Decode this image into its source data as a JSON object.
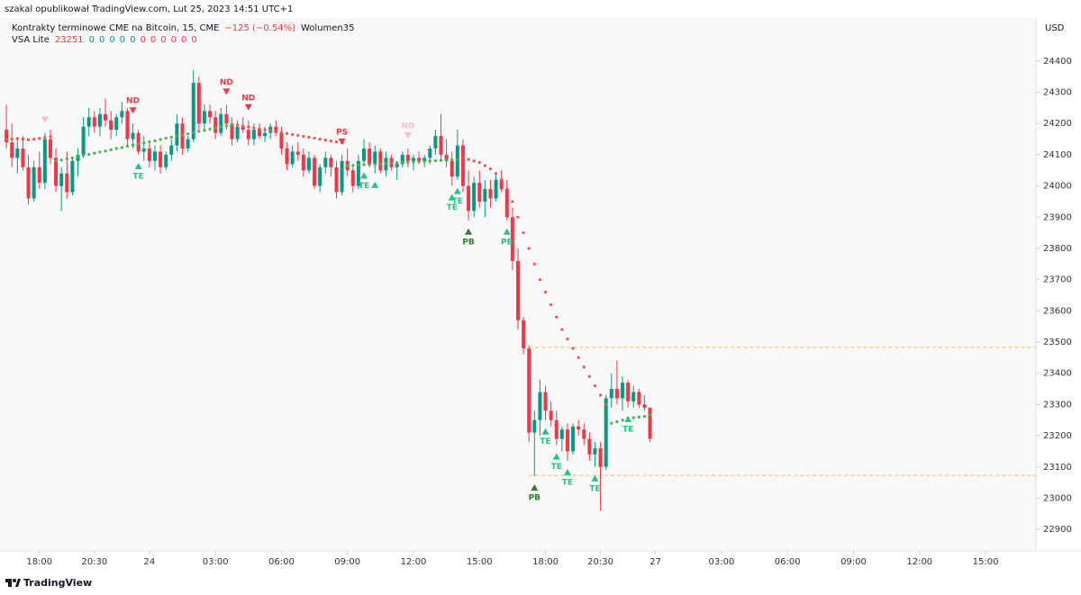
{
  "header": {
    "text": "szakal opublikował TradingView.com, Lut 25, 2023 14:51 UTC+1"
  },
  "legend": {
    "symbol": "Kontrakty terminowe CME na Bitcoin, 15, CME",
    "change": "−125 (−0.54%)",
    "volume_label": "Wolumen",
    "volume": 35,
    "indicator": "VSA Lite",
    "indicator_value": 23251,
    "indicator_values": [
      0,
      0,
      0,
      0,
      0,
      0,
      0,
      0,
      0,
      0,
      0
    ],
    "indicator_colors": [
      "#089981",
      "#089981",
      "#089981",
      "#089981",
      "#089981",
      "#f23645",
      "#f23645",
      "#f23645",
      "#f23645",
      "#f23645",
      "#f23645"
    ]
  },
  "footer": {
    "brand": "TradingView"
  },
  "chart_data": {
    "type": "candlestick",
    "currency": "USD",
    "up_color": "#089981",
    "down_color": "#f23645",
    "xlim": [
      -1,
      187
    ],
    "ylim": [
      22837,
      24538
    ],
    "yticks": [
      22900,
      23000,
      23100,
      23200,
      23300,
      23400,
      23500,
      23600,
      23700,
      23800,
      23900,
      24000,
      24100,
      24200,
      24300,
      24400
    ],
    "xticks": [
      {
        "value": 6,
        "label": "18:00"
      },
      {
        "value": 16,
        "label": "20:30"
      },
      {
        "value": 26,
        "label": "24"
      },
      {
        "value": 38,
        "label": "03:00"
      },
      {
        "value": 50,
        "label": "06:00"
      },
      {
        "value": 62,
        "label": "09:00"
      },
      {
        "value": 74,
        "label": "12:00"
      },
      {
        "value": 86,
        "label": "15:00"
      },
      {
        "value": 98,
        "label": "18:00"
      },
      {
        "value": 108,
        "label": "20:30"
      },
      {
        "value": 118,
        "label": "27"
      },
      {
        "value": 130,
        "label": "03:00"
      },
      {
        "value": 142,
        "label": "06:00"
      },
      {
        "value": 154,
        "label": "09:00"
      },
      {
        "value": 166,
        "label": "12:00"
      },
      {
        "value": 178,
        "label": "15:00"
      }
    ],
    "candles": [
      [
        24180,
        24260,
        24120,
        24140
      ],
      [
        24140,
        24200,
        24060,
        24090
      ],
      [
        24090,
        24150,
        24040,
        24120
      ],
      [
        24120,
        24160,
        24050,
        24060
      ],
      [
        24060,
        24100,
        23940,
        23960
      ],
      [
        23960,
        24080,
        23950,
        24060
      ],
      [
        24060,
        24110,
        23990,
        24010
      ],
      [
        24010,
        24170,
        23990,
        24150
      ],
      [
        24150,
        24180,
        24070,
        24090
      ],
      [
        24090,
        24120,
        23980,
        24000
      ],
      [
        24000,
        24060,
        23920,
        24040
      ],
      [
        24040,
        24110,
        23960,
        23980
      ],
      [
        23980,
        24090,
        23970,
        24080
      ],
      [
        24080,
        24120,
        24030,
        24100
      ],
      [
        24100,
        24220,
        24090,
        24190
      ],
      [
        24190,
        24250,
        24160,
        24220
      ],
      [
        24220,
        24240,
        24170,
        24190
      ],
      [
        24190,
        24250,
        24160,
        24230
      ],
      [
        24230,
        24280,
        24190,
        24210
      ],
      [
        24210,
        24240,
        24150,
        24180
      ],
      [
        24180,
        24230,
        24160,
        24220
      ],
      [
        24220,
        24270,
        24200,
        24240
      ],
      [
        24240,
        24250,
        24130,
        24150
      ],
      [
        24150,
        24200,
        24120,
        24170
      ],
      [
        24170,
        24180,
        24100,
        24110
      ],
      [
        24110,
        24160,
        24080,
        24120
      ],
      [
        24120,
        24140,
        24060,
        24080
      ],
      [
        24080,
        24130,
        24050,
        24110
      ],
      [
        24110,
        24130,
        24040,
        24060
      ],
      [
        24060,
        24110,
        24050,
        24100
      ],
      [
        24100,
        24150,
        24080,
        24130
      ],
      [
        24130,
        24230,
        24110,
        24200
      ],
      [
        24200,
        24220,
        24100,
        24120
      ],
      [
        24120,
        24160,
        24110,
        24150
      ],
      [
        24150,
        24370,
        24140,
        24330
      ],
      [
        24330,
        24350,
        24180,
        24200
      ],
      [
        24200,
        24260,
        24180,
        24240
      ],
      [
        24240,
        24260,
        24200,
        24220
      ],
      [
        24220,
        24240,
        24150,
        24170
      ],
      [
        24170,
        24250,
        24160,
        24230
      ],
      [
        24230,
        24260,
        24180,
        24200
      ],
      [
        24200,
        24220,
        24130,
        24150
      ],
      [
        24150,
        24210,
        24140,
        24190
      ],
      [
        24190,
        24220,
        24170,
        24180
      ],
      [
        24180,
        24210,
        24130,
        24150
      ],
      [
        24150,
        24200,
        24130,
        24180
      ],
      [
        24180,
        24200,
        24150,
        24160
      ],
      [
        24160,
        24190,
        24140,
        24170
      ],
      [
        24170,
        24200,
        24150,
        24190
      ],
      [
        24190,
        24210,
        24160,
        24170
      ],
      [
        24170,
        24190,
        24100,
        24120
      ],
      [
        24120,
        24140,
        24050,
        24070
      ],
      [
        24070,
        24130,
        24060,
        24110
      ],
      [
        24110,
        24140,
        24080,
        24100
      ],
      [
        24100,
        24120,
        24030,
        24050
      ],
      [
        24050,
        24110,
        24040,
        24090
      ],
      [
        24090,
        24100,
        23990,
        24000
      ],
      [
        24000,
        24070,
        23980,
        24060
      ],
      [
        24060,
        24110,
        24040,
        24090
      ],
      [
        24090,
        24100,
        24030,
        24060
      ],
      [
        24060,
        24080,
        23960,
        23980
      ],
      [
        23980,
        24100,
        23970,
        24080
      ],
      [
        24080,
        24120,
        24030,
        24050
      ],
      [
        24050,
        24060,
        23980,
        24000
      ],
      [
        24000,
        24100,
        23990,
        24080
      ],
      [
        24080,
        24150,
        24070,
        24120
      ],
      [
        24120,
        24140,
        24060,
        24070
      ],
      [
        24070,
        24130,
        24040,
        24110
      ],
      [
        24110,
        24120,
        24040,
        24050
      ],
      [
        24050,
        24110,
        24030,
        24090
      ],
      [
        24090,
        24100,
        24050,
        24060
      ],
      [
        24060,
        24080,
        24020,
        24070
      ],
      [
        24070,
        24110,
        24060,
        24100
      ],
      [
        24100,
        24120,
        24060,
        24080
      ],
      [
        24080,
        24100,
        24050,
        24090
      ],
      [
        24090,
        24110,
        24070,
        24080
      ],
      [
        24080,
        24100,
        24060,
        24090
      ],
      [
        24090,
        24130,
        24070,
        24120
      ],
      [
        24120,
        24180,
        24100,
        24160
      ],
      [
        24160,
        24230,
        24080,
        24100
      ],
      [
        24100,
        24150,
        24060,
        24080
      ],
      [
        24080,
        24110,
        24000,
        24030
      ],
      [
        24030,
        24180,
        24020,
        24130
      ],
      [
        24130,
        24150,
        23980,
        24000
      ],
      [
        24000,
        24050,
        23890,
        23920
      ],
      [
        23920,
        24030,
        23900,
        24010
      ],
      [
        24010,
        24050,
        23930,
        23950
      ],
      [
        23950,
        24020,
        23900,
        23990
      ],
      [
        23990,
        24020,
        23930,
        23960
      ],
      [
        23960,
        24040,
        23950,
        24020
      ],
      [
        24020,
        24050,
        23980,
        23990
      ],
      [
        23990,
        24020,
        23890,
        23900
      ],
      [
        23900,
        23930,
        23730,
        23760
      ],
      [
        23760,
        23800,
        23540,
        23570
      ],
      [
        23570,
        23580,
        23460,
        23480
      ],
      [
        23480,
        23490,
        23180,
        23210
      ],
      [
        23210,
        23280,
        23070,
        23250
      ],
      [
        23250,
        23380,
        23200,
        23340
      ],
      [
        23340,
        23360,
        23250,
        23280
      ],
      [
        23280,
        23310,
        23230,
        23250
      ],
      [
        23250,
        23280,
        23170,
        23190
      ],
      [
        23190,
        23230,
        23150,
        23220
      ],
      [
        23220,
        23240,
        23120,
        23150
      ],
      [
        23150,
        23240,
        23140,
        23230
      ],
      [
        23230,
        23250,
        23200,
        23220
      ],
      [
        23220,
        23240,
        23170,
        23190
      ],
      [
        23190,
        23210,
        23120,
        23140
      ],
      [
        23140,
        23180,
        23100,
        23160
      ],
      [
        23160,
        23180,
        22960,
        23100
      ],
      [
        23100,
        23330,
        23090,
        23320
      ],
      [
        23320,
        23400,
        23290,
        23350
      ],
      [
        23350,
        23440,
        23300,
        23320
      ],
      [
        23320,
        23390,
        23280,
        23370
      ],
      [
        23370,
        23380,
        23290,
        23310
      ],
      [
        23310,
        23360,
        23290,
        23340
      ],
      [
        23340,
        23350,
        23290,
        23300
      ],
      [
        23300,
        23330,
        23280,
        23290
      ],
      [
        23290,
        23290,
        23180,
        23190
      ]
    ],
    "trail_long": [
      null,
      null,
      null,
      null,
      null,
      null,
      null,
      null,
      null,
      24080,
      24083,
      24087,
      24090,
      24094,
      24098,
      24101,
      24105,
      24109,
      24112,
      24116,
      24120,
      24123,
      24127,
      24131,
      24134,
      24138,
      24142,
      24145,
      24149,
      24153,
      24156,
      24160,
      24164,
      24167,
      24171,
      24175,
      24178,
      24182,
      24186,
      24189,
      24193,
      24195,
      null,
      null,
      null,
      null,
      null,
      null,
      null,
      null,
      null,
      null,
      null,
      null,
      null,
      null,
      null,
      null,
      null,
      null,
      null,
      null,
      24065,
      24066,
      24067,
      24068,
      24069,
      24070,
      24071,
      24072,
      24073,
      24074,
      24075,
      24076,
      24077,
      24078,
      24079,
      24080,
      24081,
      24082,
      24083,
      24084,
      24085,
      null,
      null,
      null,
      null,
      null,
      null,
      null,
      null,
      null,
      null,
      null,
      null,
      null,
      null,
      null,
      null,
      null,
      null,
      null,
      null,
      null,
      null,
      null,
      null,
      null,
      null,
      null,
      23240,
      23245,
      23250,
      23255,
      23258,
      23260,
      23262,
      23265
    ],
    "trail_short": [
      24150,
      24150,
      24152,
      24150,
      24148,
      24150,
      24152,
      24155,
      24158,
      null,
      null,
      null,
      null,
      null,
      null,
      null,
      null,
      null,
      null,
      null,
      null,
      null,
      null,
      null,
      null,
      null,
      null,
      null,
      null,
      null,
      null,
      null,
      null,
      null,
      null,
      null,
      null,
      null,
      null,
      null,
      null,
      null,
      24195,
      24192,
      24189,
      24186,
      24183,
      24180,
      24177,
      24174,
      24171,
      24168,
      24165,
      24162,
      24159,
      24156,
      24153,
      24150,
      24147,
      24144,
      24141,
      24138,
      null,
      null,
      null,
      null,
      null,
      null,
      null,
      null,
      null,
      null,
      null,
      null,
      null,
      null,
      null,
      null,
      null,
      null,
      null,
      null,
      null,
      24090,
      24085,
      24080,
      24075,
      24065,
      24055,
      24040,
      24020,
      23990,
      23950,
      23900,
      23850,
      23800,
      23750,
      23700,
      23660,
      23620,
      23580,
      23540,
      23510,
      23480,
      23450,
      23420,
      23390,
      23360,
      23330,
      23300,
      null,
      null,
      null,
      null,
      null,
      null,
      null,
      null
    ],
    "trail_long_color": "#4caf50",
    "trail_short_color": "#ef5350",
    "levels": [
      {
        "value": 23483,
        "color": "#ffb74d"
      },
      {
        "value": 23073,
        "color": "#ffb74d"
      }
    ],
    "signals": [
      {
        "bar": 7,
        "label": null,
        "dir": "down",
        "color": "#f8bbd0"
      },
      {
        "bar": 23,
        "label": "ND",
        "dir": "down",
        "color": "#f23645"
      },
      {
        "bar": 24,
        "label": "TE",
        "dir": "up",
        "color": "#26c281"
      },
      {
        "bar": 40,
        "label": "ND",
        "dir": "down",
        "color": "#f23645"
      },
      {
        "bar": 44,
        "label": "ND",
        "dir": "down",
        "color": "#f23645"
      },
      {
        "bar": 61,
        "label": "PS",
        "dir": "down",
        "color": "#f23645"
      },
      {
        "bar": 65,
        "label": "TE",
        "dir": "up",
        "color": "#26c281"
      },
      {
        "bar": 67,
        "label": null,
        "dir": "up",
        "color": "#26c281"
      },
      {
        "bar": 73,
        "label": "ND",
        "dir": "down",
        "color": "#f8bbd0"
      },
      {
        "bar": 81,
        "label": "TE",
        "dir": "up",
        "color": "#26c281"
      },
      {
        "bar": 82,
        "label": "TE",
        "dir": "up",
        "color": "#26c281"
      },
      {
        "bar": 84,
        "label": "PB",
        "dir": "up",
        "color": "#2e7d32"
      },
      {
        "bar": 91,
        "label": "PB",
        "dir": "up",
        "color": "#26c281"
      },
      {
        "bar": 96,
        "label": "PB",
        "dir": "up",
        "color": "#2e7d32"
      },
      {
        "bar": 98,
        "label": "TE",
        "dir": "up",
        "color": "#26c281"
      },
      {
        "bar": 100,
        "label": "TE",
        "dir": "up",
        "color": "#26c281"
      },
      {
        "bar": 102,
        "label": "TE",
        "dir": "up",
        "color": "#26c281"
      },
      {
        "bar": 107,
        "label": "TE",
        "dir": "up",
        "color": "#26c281"
      },
      {
        "bar": 113,
        "label": "TE",
        "dir": "up",
        "color": "#26c281"
      }
    ]
  }
}
